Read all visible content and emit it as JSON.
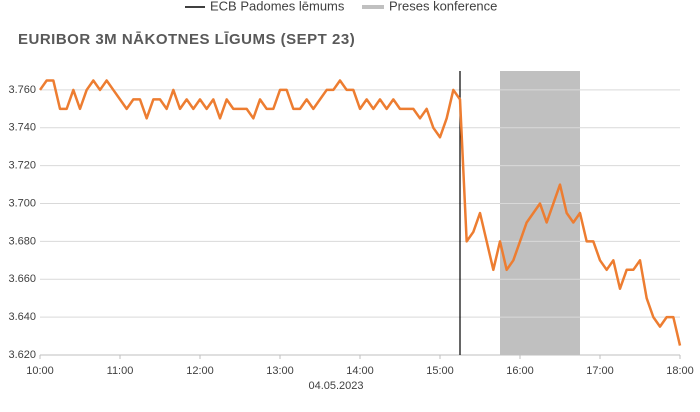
{
  "chart_data": {
    "type": "line",
    "title": "EURIBOR 3M NĀKOTNES LĪGUMS (SEPT 23)",
    "x_label": "04.05.2023",
    "color": "#ed7d31",
    "ecb_decision": {
      "label": "ECB Padomes lēmums",
      "x": "15:15",
      "color": "#000000"
    },
    "press_conference": {
      "label": "Preses konference",
      "x": [
        "15:45",
        "16:45"
      ],
      "color": "#c0c0c0"
    },
    "x": [
      "10:00",
      "10:05",
      "10:10",
      "10:15",
      "10:20",
      "10:25",
      "10:30",
      "10:35",
      "10:40",
      "10:45",
      "10:50",
      "10:55",
      "11:00",
      "11:05",
      "11:10",
      "11:15",
      "11:20",
      "11:25",
      "11:30",
      "11:35",
      "11:40",
      "11:45",
      "11:50",
      "11:55",
      "12:00",
      "12:05",
      "12:10",
      "12:15",
      "12:20",
      "12:25",
      "12:30",
      "12:35",
      "12:40",
      "12:45",
      "12:50",
      "12:55",
      "13:00",
      "13:05",
      "13:10",
      "13:15",
      "13:20",
      "13:25",
      "13:30",
      "13:35",
      "13:40",
      "13:45",
      "13:50",
      "13:55",
      "14:00",
      "14:05",
      "14:10",
      "14:15",
      "14:20",
      "14:25",
      "14:30",
      "14:35",
      "14:40",
      "14:45",
      "14:50",
      "14:55",
      "15:00",
      "15:05",
      "15:10",
      "15:15",
      "15:20",
      "15:25",
      "15:30",
      "15:35",
      "15:40",
      "15:45",
      "15:50",
      "15:55",
      "16:00",
      "16:05",
      "16:10",
      "16:15",
      "16:20",
      "16:25",
      "16:30",
      "16:35",
      "16:40",
      "16:45",
      "16:50",
      "16:55",
      "17:00",
      "17:05",
      "17:10",
      "17:15",
      "17:20",
      "17:25",
      "17:30",
      "17:35",
      "17:40",
      "17:45",
      "17:50",
      "17:55",
      "18:00"
    ],
    "values": [
      3.76,
      3.765,
      3.765,
      3.75,
      3.75,
      3.76,
      3.75,
      3.76,
      3.765,
      3.76,
      3.765,
      3.76,
      3.755,
      3.75,
      3.755,
      3.755,
      3.745,
      3.755,
      3.755,
      3.75,
      3.76,
      3.75,
      3.755,
      3.75,
      3.755,
      3.75,
      3.755,
      3.745,
      3.755,
      3.75,
      3.75,
      3.75,
      3.745,
      3.755,
      3.75,
      3.75,
      3.76,
      3.76,
      3.75,
      3.75,
      3.755,
      3.75,
      3.755,
      3.76,
      3.76,
      3.765,
      3.76,
      3.76,
      3.75,
      3.755,
      3.75,
      3.755,
      3.75,
      3.755,
      3.75,
      3.75,
      3.75,
      3.745,
      3.75,
      3.74,
      3.735,
      3.745,
      3.76,
      3.755,
      3.68,
      3.685,
      3.695,
      3.68,
      3.665,
      3.68,
      3.665,
      3.67,
      3.68,
      3.69,
      3.695,
      3.7,
      3.69,
      3.7,
      3.71,
      3.695,
      3.69,
      3.695,
      3.68,
      3.68,
      3.67,
      3.665,
      3.67,
      3.655,
      3.665,
      3.665,
      3.67,
      3.65,
      3.64,
      3.635,
      3.64,
      3.64,
      3.625
    ],
    "xlim": [
      "10:00",
      "18:00"
    ],
    "xticks": [
      "10:00",
      "11:00",
      "12:00",
      "13:00",
      "14:00",
      "15:00",
      "16:00",
      "17:00",
      "18:00"
    ],
    "ylim": [
      3.62,
      3.77
    ],
    "yticks": [
      {
        "value": 3.62,
        "label": "3.620"
      },
      {
        "value": 3.64,
        "label": "3.640"
      },
      {
        "value": 3.66,
        "label": "3.660"
      },
      {
        "value": 3.68,
        "label": "3.680"
      },
      {
        "value": 3.7,
        "label": "3.700"
      },
      {
        "value": 3.72,
        "label": "3.720"
      },
      {
        "value": 3.74,
        "label": "3.740"
      },
      {
        "value": 3.76,
        "label": "3.760"
      }
    ],
    "grid": true
  }
}
